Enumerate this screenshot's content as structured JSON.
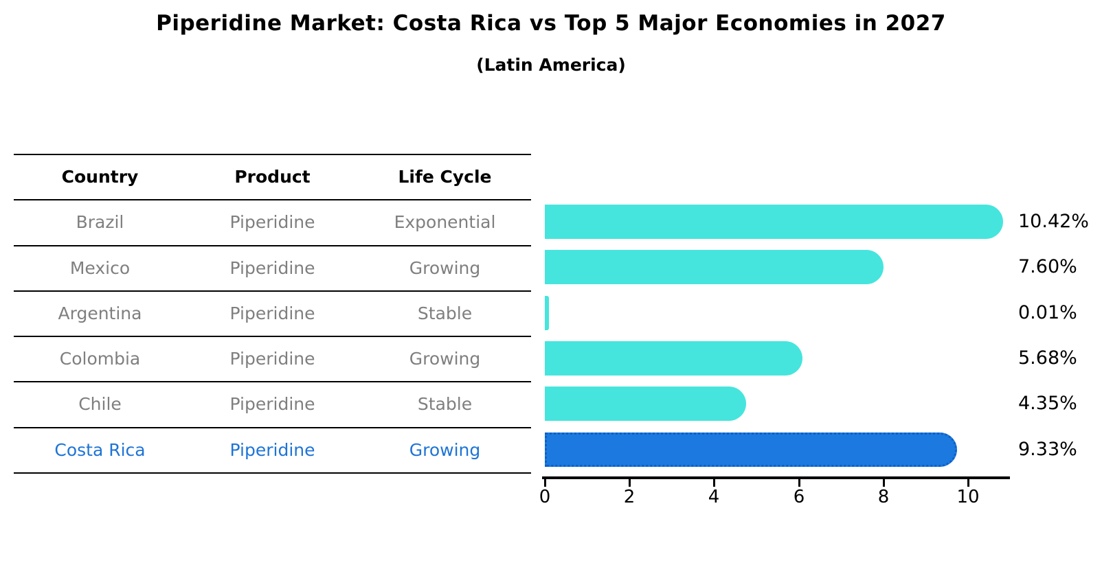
{
  "title": "Piperidine Market: Costa Rica vs Top 5 Major Economies in 2027",
  "subtitle": "(Latin America)",
  "table": {
    "headers": [
      "Country",
      "Product",
      "Life Cycle"
    ],
    "rows": [
      [
        "Brazil",
        "Piperidine",
        "Exponential"
      ],
      [
        "Mexico",
        "Piperidine",
        "Growing"
      ],
      [
        "Argentina",
        "Piperidine",
        "Stable"
      ],
      [
        "Colombia",
        "Piperidine",
        "Growing"
      ],
      [
        "Chile",
        "Piperidine",
        "Stable"
      ],
      [
        "Costa Rica",
        "Piperidine",
        "Growing"
      ]
    ],
    "highlight_row_index": 5
  },
  "chart_data": {
    "type": "bar",
    "orientation": "horizontal",
    "categories": [
      "Brazil",
      "Mexico",
      "Argentina",
      "Colombia",
      "Chile",
      "Costa Rica"
    ],
    "values": [
      10.42,
      7.6,
      0.01,
      5.68,
      4.35,
      9.33
    ],
    "value_labels": [
      "10.42%",
      "7.60%",
      "0.01%",
      "5.68%",
      "4.35%",
      "9.33%"
    ],
    "xlim": [
      0,
      11
    ],
    "xticks": [
      0,
      2,
      4,
      6,
      8,
      10
    ],
    "xtick_labels": [
      "0",
      "2",
      "4",
      "6",
      "8",
      "10"
    ],
    "grid": false,
    "legend": "none",
    "highlight_index": 5,
    "colors": {
      "bar_default": "#45e5dd",
      "bar_highlight": "#1b79df",
      "bar_highlight_edge": "#0d60c4",
      "highlight_text": "#1e74d6",
      "table_text": "#7f7f7f",
      "axis": "#000000"
    }
  }
}
